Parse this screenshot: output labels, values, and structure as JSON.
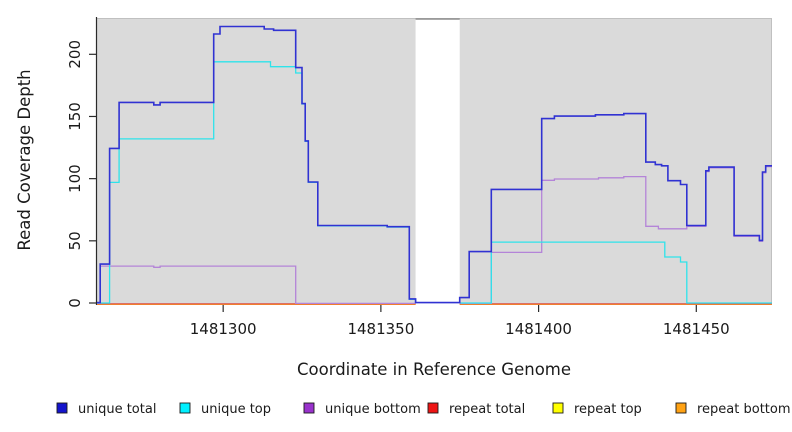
{
  "figure": {
    "background": "#ffffff",
    "plot_bg": "#dadada",
    "axis_color": "#2a2a2a",
    "gap_border_color": "#8d8d8d",
    "top_border_color": "#c0c0c0"
  },
  "x_axis": {
    "label": "Coordinate in Reference Genome",
    "range": [
      1481260,
      1481474
    ],
    "ticks": [
      {
        "value": 1481300,
        "label": "1481300"
      },
      {
        "value": 1481350,
        "label": "1481350"
      },
      {
        "value": 1481400,
        "label": "1481400"
      },
      {
        "value": 1481450,
        "label": "1481450"
      }
    ]
  },
  "y_axis": {
    "label": "Read Coverage Depth",
    "range": [
      0,
      230
    ],
    "ticks": [
      {
        "value": 0,
        "label": "0"
      },
      {
        "value": 50,
        "label": "50"
      },
      {
        "value": 100,
        "label": "100"
      },
      {
        "value": 150,
        "label": "150"
      },
      {
        "value": 200,
        "label": "200"
      }
    ]
  },
  "chart_data": {
    "type": "line",
    "style": "step",
    "grid": false,
    "legend_position": "bottom",
    "gap": {
      "from": 1481361,
      "to": 1481375
    },
    "series": [
      {
        "name": "unique total",
        "slug": "unique-total",
        "color": "#3032d2",
        "legend_color": "#1414cc",
        "segments": [
          [
            [
              1481260,
              0
            ],
            [
              1481261,
              31
            ],
            [
              1481264,
              124
            ],
            [
              1481267,
              161
            ],
            [
              1481278,
              159
            ],
            [
              1481280,
              161
            ],
            [
              1481297,
              216
            ],
            [
              1481299,
              222
            ],
            [
              1481313,
              220
            ],
            [
              1481316,
              219
            ],
            [
              1481323,
              189
            ],
            [
              1481325,
              160
            ],
            [
              1481326,
              130
            ],
            [
              1481327,
              97
            ],
            [
              1481330,
              62
            ],
            [
              1481352,
              61
            ],
            [
              1481359,
              3
            ],
            [
              1481361,
              0
            ],
            [
              1481375,
              4
            ],
            [
              1481378,
              41
            ],
            [
              1481385,
              91
            ],
            [
              1481401,
              148
            ],
            [
              1481405,
              150
            ],
            [
              1481418,
              151
            ],
            [
              1481427,
              152
            ],
            [
              1481434,
              113
            ],
            [
              1481437,
              111
            ],
            [
              1481439,
              110
            ],
            [
              1481441,
              98
            ],
            [
              1481445,
              95
            ],
            [
              1481447,
              62
            ],
            [
              1481453,
              106
            ],
            [
              1481454,
              109
            ],
            [
              1481462,
              54
            ],
            [
              1481470,
              50
            ],
            [
              1481471,
              105
            ],
            [
              1481472,
              110
            ],
            [
              1481474,
              110
            ]
          ]
        ]
      },
      {
        "name": "unique top",
        "slug": "unique-top",
        "color": "#2ee3ea",
        "legend_color": "#00f0ff",
        "segments": [
          [
            [
              1481260,
              0
            ],
            [
              1481264,
              97
            ],
            [
              1481267,
              132
            ],
            [
              1481297,
              194
            ],
            [
              1481315,
              190
            ],
            [
              1481323,
              185
            ],
            [
              1481325,
              160
            ],
            [
              1481326,
              130
            ],
            [
              1481327,
              97
            ],
            [
              1481330,
              62
            ],
            [
              1481352,
              61
            ],
            [
              1481359,
              3
            ],
            [
              1481361,
              0
            ]
          ],
          [
            [
              1481375,
              0
            ],
            [
              1481385,
              49
            ],
            [
              1481440,
              37
            ],
            [
              1481445,
              33
            ],
            [
              1481447,
              0
            ],
            [
              1481474,
              0
            ]
          ]
        ]
      },
      {
        "name": "unique bottom",
        "slug": "unique-bottom",
        "color": "#b484d8",
        "legend_color": "#9932cc",
        "segments": [
          [
            [
              1481260,
              0
            ],
            [
              1481261,
              30
            ],
            [
              1481278,
              29
            ],
            [
              1481280,
              30
            ],
            [
              1481323,
              0
            ],
            [
              1481361,
              0
            ]
          ],
          [
            [
              1481375,
              0
            ],
            [
              1481385,
              41
            ],
            [
              1481401,
              99
            ],
            [
              1481405,
              100
            ],
            [
              1481419,
              101
            ],
            [
              1481427,
              102
            ],
            [
              1481434,
              62
            ],
            [
              1481438,
              60
            ],
            [
              1481447,
              62
            ],
            [
              1481453,
              106
            ],
            [
              1481454,
              109
            ],
            [
              1481462,
              54
            ],
            [
              1481470,
              50
            ],
            [
              1481471,
              105
            ],
            [
              1481472,
              110
            ],
            [
              1481474,
              110
            ]
          ]
        ]
      },
      {
        "name": "repeat total",
        "slug": "repeat-total",
        "color": "#d84a66",
        "legend_color": "#ee1515",
        "segments": [
          [
            [
              1481260,
              0
            ],
            [
              1481361,
              0
            ]
          ],
          [
            [
              1481375,
              0
            ],
            [
              1481474,
              0
            ]
          ]
        ]
      },
      {
        "name": "repeat top",
        "slug": "repeat-top",
        "color": "#f2f200",
        "legend_color": "#ffff00",
        "segments": [
          [
            [
              1481260,
              0
            ],
            [
              1481361,
              0
            ]
          ],
          [
            [
              1481375,
              0
            ],
            [
              1481474,
              0
            ]
          ]
        ]
      },
      {
        "name": "repeat bottom",
        "slug": "repeat-bottom",
        "color": "#ff8e0e",
        "legend_color": "#ffa214",
        "segments": [
          [
            [
              1481260,
              0
            ],
            [
              1481361,
              0
            ]
          ],
          [
            [
              1481375,
              0
            ],
            [
              1481474,
              0
            ]
          ]
        ]
      }
    ]
  }
}
